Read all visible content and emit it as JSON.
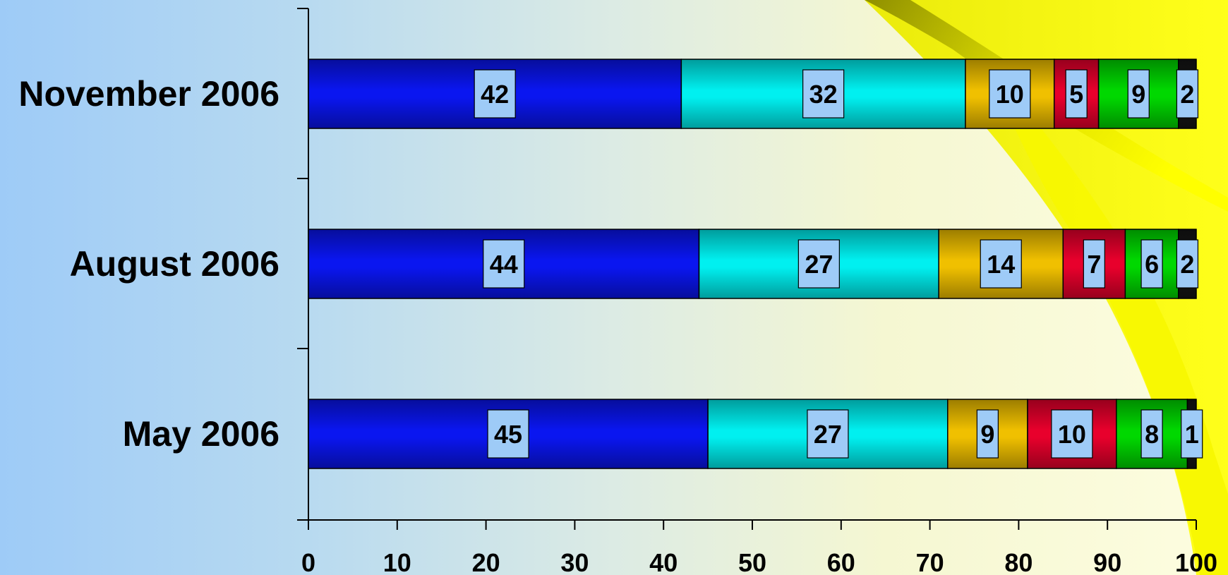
{
  "chart_data": {
    "type": "bar",
    "orientation": "horizontal",
    "stacked": true,
    "categories": [
      "November 2006",
      "August 2006",
      "May 2006"
    ],
    "series": [
      {
        "color": "#0a16f0",
        "values": [
          42,
          44,
          45
        ]
      },
      {
        "color": "#00f0f0",
        "values": [
          32,
          27,
          27
        ]
      },
      {
        "color": "#f0c000",
        "values": [
          10,
          14,
          9
        ]
      },
      {
        "color": "#e8002c",
        "values": [
          5,
          7,
          10
        ]
      },
      {
        "color": "#00d800",
        "values": [
          9,
          6,
          8
        ]
      },
      {
        "color": "#151515",
        "values": [
          2,
          2,
          1
        ]
      }
    ],
    "xlim": [
      0,
      100
    ],
    "xticks": [
      "0",
      "10",
      "20",
      "30",
      "40",
      "50",
      "60",
      "70",
      "80",
      "90",
      "100"
    ],
    "grid": false,
    "legend": "none"
  },
  "colors": {
    "label_box": "#9ecbf7",
    "swoosh_dark": "#9a9a00",
    "swoosh_bright": "#f5f500"
  }
}
